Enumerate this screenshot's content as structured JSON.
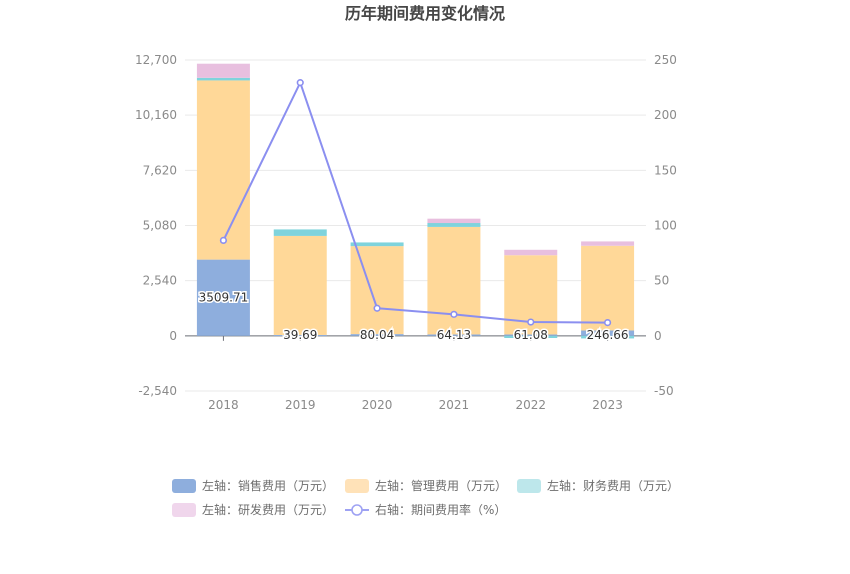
{
  "chart_data": {
    "type": "bar",
    "title": "历年期间费用变化情况",
    "categories": [
      "2018",
      "2019",
      "2020",
      "2021",
      "2022",
      "2023"
    ],
    "series": [
      {
        "name": "左轴：销售费用（万元）",
        "axis": "left",
        "type": "bar",
        "color": "#8eaedd",
        "values": [
          3509.71,
          39.69,
          80.04,
          64.13,
          61.08,
          246.66
        ]
      },
      {
        "name": "左轴：管理费用（万元）",
        "axis": "left",
        "type": "bar",
        "color": "#ffd898",
        "values": [
          8250,
          4560,
          4050,
          4950,
          3650,
          3900
        ]
      },
      {
        "name": "左轴：财务费用（万元）",
        "axis": "left",
        "type": "bar",
        "color": "#7fd3dc",
        "values": [
          120,
          300,
          170,
          180,
          -100,
          -120
        ]
      },
      {
        "name": "左轴：研发费用（万元）",
        "axis": "left",
        "type": "bar",
        "color": "#e8bfdf",
        "values": [
          650,
          0,
          0,
          200,
          250,
          200
        ]
      },
      {
        "name": "右轴：期间费用率（%）",
        "axis": "right",
        "type": "line",
        "color": "#8b8ff0",
        "values": [
          86.5,
          229.5,
          25,
          19.5,
          12.5,
          12
        ]
      }
    ],
    "data_labels": [
      "3509.71",
      "39.69",
      "80.04",
      "64.13",
      "61.08",
      "246.66"
    ],
    "left_axis": {
      "min": -2540,
      "max": 12700,
      "ticks": [
        "12,700",
        "10,160",
        "7,620",
        "5,080",
        "2,540",
        "0",
        "-2,540"
      ]
    },
    "right_axis": {
      "min": -50,
      "max": 250,
      "ticks": [
        "250",
        "200",
        "150",
        "100",
        "50",
        "0",
        "-50"
      ]
    },
    "legend": {
      "placement": "bottom",
      "items": [
        {
          "label": "左轴：销售费用（万元）",
          "swatch": "box",
          "color": "#8eaedd"
        },
        {
          "label": "左轴：管理费用（万元）",
          "swatch": "box",
          "color": "#ffe2b8"
        },
        {
          "label": "左轴：财务费用（万元）",
          "swatch": "box",
          "color": "#bde7eb"
        },
        {
          "label": "左轴：研发费用（万元）",
          "swatch": "box",
          "color": "#f0d6ec"
        },
        {
          "label": "右轴：期间费用率（%）",
          "swatch": "line",
          "color": "#9ea2f3"
        }
      ]
    }
  }
}
